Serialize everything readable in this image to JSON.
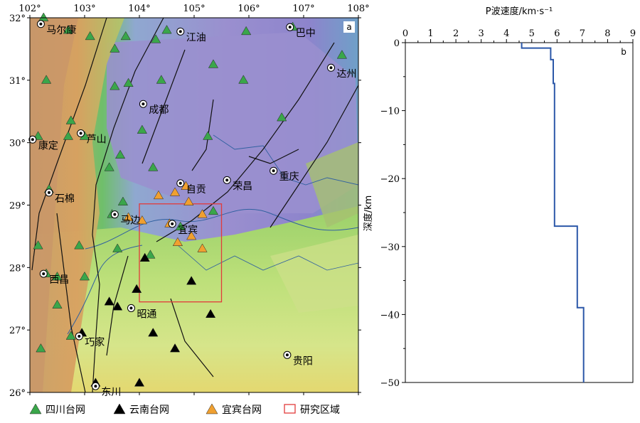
{
  "map": {
    "panel_label": "a",
    "lon_ticks": [
      "102°",
      "103°",
      "104°",
      "105°",
      "106°",
      "107°",
      "108°"
    ],
    "lat_ticks": [
      "32°",
      "31°",
      "30°",
      "29°",
      "28°",
      "27°",
      "26°"
    ],
    "lon_range": [
      102,
      108
    ],
    "lat_range": [
      26,
      32
    ],
    "study_area": {
      "lon": [
        104.0,
        105.5
      ],
      "lat": [
        27.45,
        29.02
      ],
      "color": "#e23b3b"
    },
    "cities": [
      {
        "name": "马尔康",
        "lon": 102.2,
        "lat": 31.9
      },
      {
        "name": "江油",
        "lon": 104.75,
        "lat": 31.78
      },
      {
        "name": "巴中",
        "lon": 106.75,
        "lat": 31.85
      },
      {
        "name": "达州",
        "lon": 107.5,
        "lat": 31.2
      },
      {
        "name": "成都",
        "lon": 104.07,
        "lat": 30.62
      },
      {
        "name": "芦山",
        "lon": 102.93,
        "lat": 30.15
      },
      {
        "name": "康定",
        "lon": 102.05,
        "lat": 30.05
      },
      {
        "name": "重庆",
        "lon": 106.45,
        "lat": 29.55
      },
      {
        "name": "自贡",
        "lon": 104.75,
        "lat": 29.35
      },
      {
        "name": "荣昌",
        "lon": 105.6,
        "lat": 29.4
      },
      {
        "name": "石棉",
        "lon": 102.35,
        "lat": 29.2
      },
      {
        "name": "马边",
        "lon": 103.55,
        "lat": 28.85
      },
      {
        "name": "宜宾",
        "lon": 104.6,
        "lat": 28.7
      },
      {
        "name": "西昌",
        "lon": 102.25,
        "lat": 27.9
      },
      {
        "name": "昭通",
        "lon": 103.85,
        "lat": 27.35
      },
      {
        "name": "巧家",
        "lon": 102.9,
        "lat": 26.9
      },
      {
        "name": "贵阳",
        "lon": 106.7,
        "lat": 26.6
      },
      {
        "name": "东川",
        "lon": 103.2,
        "lat": 26.1
      }
    ],
    "sichuan_stations": [
      [
        102.25,
        32.0
      ],
      [
        102.7,
        31.8
      ],
      [
        103.1,
        31.7
      ],
      [
        103.75,
        31.7
      ],
      [
        104.3,
        31.65
      ],
      [
        104.5,
        31.8
      ],
      [
        105.95,
        31.78
      ],
      [
        106.8,
        31.85
      ],
      [
        107.7,
        31.4
      ],
      [
        102.3,
        31.0
      ],
      [
        103.55,
        31.5
      ],
      [
        103.55,
        30.9
      ],
      [
        103.8,
        30.95
      ],
      [
        104.4,
        31.0
      ],
      [
        105.35,
        31.25
      ],
      [
        105.9,
        31.0
      ],
      [
        106.6,
        30.4
      ],
      [
        102.15,
        30.1
      ],
      [
        102.7,
        30.1
      ],
      [
        102.75,
        30.35
      ],
      [
        103.0,
        30.1
      ],
      [
        104.05,
        30.2
      ],
      [
        105.25,
        30.1
      ],
      [
        103.65,
        29.8
      ],
      [
        103.45,
        29.6
      ],
      [
        104.25,
        29.6
      ],
      [
        102.35,
        29.25
      ],
      [
        103.7,
        29.05
      ],
      [
        102.15,
        28.35
      ],
      [
        102.9,
        28.35
      ],
      [
        103.6,
        28.3
      ],
      [
        103.5,
        28.85
      ],
      [
        104.75,
        28.65
      ],
      [
        105.35,
        28.9
      ],
      [
        102.3,
        27.9
      ],
      [
        102.5,
        27.85
      ],
      [
        103.0,
        27.85
      ],
      [
        102.5,
        27.4
      ],
      [
        102.75,
        26.9
      ],
      [
        102.2,
        26.7
      ],
      [
        104.2,
        28.2
      ]
    ],
    "yunnan_stations": [
      [
        104.1,
        28.15
      ],
      [
        103.95,
        27.65
      ],
      [
        104.95,
        27.78
      ],
      [
        103.45,
        27.45
      ],
      [
        103.6,
        27.37
      ],
      [
        105.3,
        27.25
      ],
      [
        104.25,
        26.95
      ],
      [
        104.65,
        26.7
      ],
      [
        102.95,
        26.95
      ],
      [
        103.2,
        26.15
      ],
      [
        104.0,
        26.15
      ]
    ],
    "yibin_stations": [
      [
        104.35,
        29.15
      ],
      [
        104.65,
        29.2
      ],
      [
        104.85,
        29.3
      ],
      [
        104.9,
        29.05
      ],
      [
        103.8,
        28.8
      ],
      [
        104.05,
        28.75
      ],
      [
        105.15,
        28.85
      ],
      [
        104.95,
        28.5
      ],
      [
        104.7,
        28.4
      ],
      [
        105.15,
        28.3
      ],
      [
        104.55,
        28.7
      ]
    ],
    "legend": [
      {
        "label": "四川台网",
        "color": "#3aa64a",
        "shape": "triangle"
      },
      {
        "label": "云南台网",
        "color": "#000000",
        "shape": "triangle"
      },
      {
        "label": "宜宾台网",
        "color": "#f0a030",
        "shape": "triangle"
      },
      {
        "label": "研究区域",
        "color": "#e23b3b",
        "shape": "rect"
      }
    ]
  },
  "chart_data": {
    "type": "line",
    "panel_label": "b",
    "xlabel": "P波速度/km·s⁻¹",
    "ylabel": "深度/km",
    "xlim": [
      0,
      9
    ],
    "ylim": [
      0,
      -50
    ],
    "x_ticks": [
      "0",
      "1",
      "2",
      "3",
      "4",
      "5",
      "6",
      "7",
      "8",
      "9"
    ],
    "y_ticks": [
      "0",
      "−10",
      "−20",
      "−30",
      "−40",
      "−50"
    ],
    "series": [
      {
        "color": "#2b57a8",
        "points": [
          [
            4.6,
            0
          ],
          [
            4.6,
            -0.8
          ],
          [
            5.75,
            -0.8
          ],
          [
            5.75,
            -2.5
          ],
          [
            5.85,
            -2.5
          ],
          [
            5.85,
            -6.0
          ],
          [
            5.9,
            -6.0
          ],
          [
            5.9,
            -27.0
          ],
          [
            6.8,
            -27.0
          ],
          [
            6.8,
            -39.0
          ],
          [
            7.05,
            -39.0
          ],
          [
            7.05,
            -50.0
          ]
        ]
      }
    ]
  }
}
